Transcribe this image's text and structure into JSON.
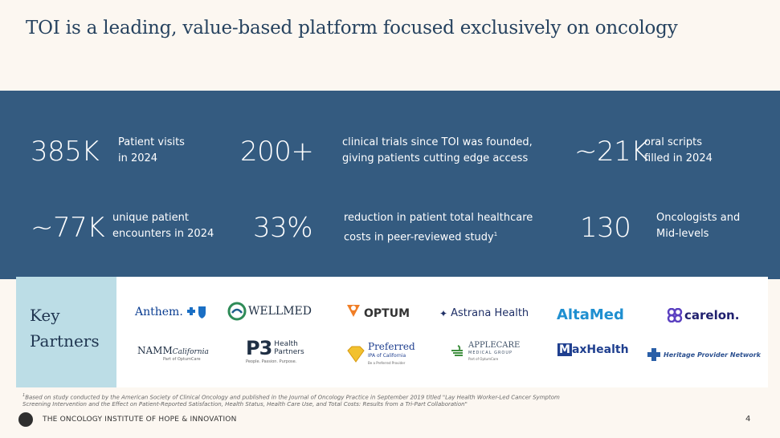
{
  "title": "TOI is a leading, value-based platform focused exclusively on oncology",
  "stats": [
    {
      "value": "385K",
      "line1": "Patient visits",
      "line2": "in 2024"
    },
    {
      "value": "200+",
      "line1": "clinical trials since TOI was founded,",
      "line2": "giving patients cutting edge access"
    },
    {
      "value": "~21K",
      "line1": "oral scripts",
      "line2": "filled in 2024"
    },
    {
      "value": "~77K",
      "line1": "unique patient",
      "line2": "encounters in 2024"
    },
    {
      "value": "33%",
      "line1": "reduction in patient total healthcare",
      "line2": "costs in peer-reviewed study",
      "sup": "1"
    },
    {
      "value": "130",
      "line1": "Oncologists and",
      "line2": "Mid-levels"
    }
  ],
  "partners": {
    "label_line1": "Key",
    "label_line2": "Partners",
    "logos": {
      "anthem": "Anthem.",
      "wellmed": "WELLMED",
      "optum": "OPTUM",
      "astrana": "Astrana Health",
      "altamed": "AltaMed",
      "carelon": "carelon.",
      "namm": "NAMM",
      "namm_script": "California",
      "namm_sub": "Part of OptumCare",
      "p3_main": "P3",
      "p3_line1": "Health",
      "p3_line2": "Partners",
      "p3_tag": "People. Passion. Purpose.",
      "preferred": "Preferred",
      "preferred_sub": "IPA of California",
      "preferred_tag": "Be a Preferred Provider",
      "applecare": "APPLECARE",
      "applecare_sub": "MEDICAL GROUP",
      "applecare_tag": "Part of OptumCare",
      "maxhealth_m": "M",
      "maxhealth": "axHealth",
      "heritage": "Heritage Provider Network"
    }
  },
  "footnote": "Based on study conducted by the American Society of Clinical Oncology and published in the Journal of Oncology Practice in September 2019 titled \"Lay Health Worker-Led Cancer Symptom Screening Intervention and the Effect on Patient-Reported Satisfaction, Health Status, Health Care Use, and Total Costs: Results from a Tri-Part Collaboration\"",
  "footnote_mark": "1",
  "footer": {
    "org": "THE ONCOLOGY INSTITUTE OF HOPE & INNOVATION",
    "page": "4"
  },
  "colors": {
    "band": "#345b80",
    "label_bg": "#bcdde6",
    "page_bg": "#fcf7f1"
  }
}
